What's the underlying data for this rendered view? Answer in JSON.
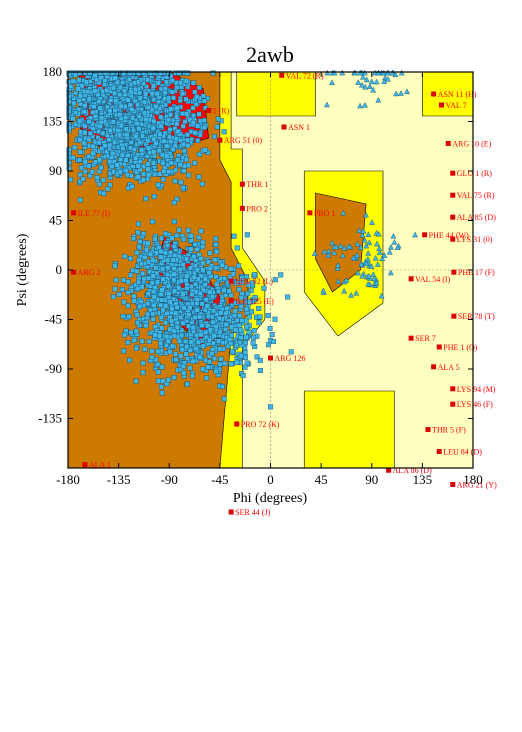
{
  "chart_data": {
    "type": "scatter",
    "title": "2awb",
    "xlabel": "Phi (degrees)",
    "ylabel": "Psi (degrees)",
    "xlim": [
      -180,
      180
    ],
    "ylim": [
      -180,
      180
    ],
    "x_ticks": [
      -180,
      -135,
      -90,
      -45,
      0,
      45,
      90,
      135,
      180
    ],
    "y_ticks": [
      180,
      135,
      90,
      45,
      0,
      -45,
      -90,
      -135
    ],
    "region_colors": {
      "core": "#ff0000",
      "allowed": "#cc7a00",
      "generous": "#ffff00",
      "outer": "#ffffc0"
    },
    "marker_colors": {
      "general": "#3fb6e8",
      "glycine": "#3fb6e8",
      "outlier": "#dd0000"
    },
    "series": [
      {
        "name": "",
        "marker": "square",
        "density_clusters": [
          {
            "phi": -120,
            "psi": 135,
            "count": 1400
          },
          {
            "phi": -65,
            "psi": -40,
            "count": 900
          },
          {
            "phi": -90,
            "psi": 0,
            "count": 350
          },
          {
            "phi": -150,
            "psi": 160,
            "count": 250
          }
        ]
      },
      {
        "name": "",
        "marker": "triangle",
        "density_clusters": [
          {
            "phi": 80,
            "psi": 10,
            "count": 80
          },
          {
            "phi": 90,
            "psi": 180,
            "count": 40
          }
        ]
      }
    ],
    "labeled_outliers": [
      {
        "label": "VAL 72 (R)",
        "phi": 10,
        "psi": 177
      },
      {
        "label": "ASN 11 (H)",
        "phi": 145,
        "psi": 160
      },
      {
        "label": "VAL 7",
        "phi": 152,
        "psi": 150
      },
      {
        "label": "5 (R)",
        "phi": -55,
        "psi": 145
      },
      {
        "label": "ARG 51 (0)",
        "phi": -45,
        "psi": 118
      },
      {
        "label": "ASN 1",
        "phi": 12,
        "psi": 130
      },
      {
        "label": "ARG 10 (E)",
        "phi": 158,
        "psi": 115
      },
      {
        "label": "GLU 1 (R)",
        "phi": 162,
        "psi": 88
      },
      {
        "label": "VAL 75 (R)",
        "phi": 162,
        "psi": 68
      },
      {
        "label": "ALA 85 (D)",
        "phi": 162,
        "psi": 48
      },
      {
        "label": "PHE 44 (W)",
        "phi": 137,
        "psi": 32
      },
      {
        "label": "LYS 31 (0)",
        "phi": 162,
        "psi": 28
      },
      {
        "label": "ILE 77 (I)",
        "phi": -175,
        "psi": 52
      },
      {
        "label": "THR 1",
        "phi": -25,
        "psi": 78
      },
      {
        "label": "PRO 2",
        "phi": -25,
        "psi": 56
      },
      {
        "label": "PRO 1",
        "phi": 35,
        "psi": 52
      },
      {
        "label": "ARG 2",
        "phi": -175,
        "psi": -2
      },
      {
        "label": "LEU 92 (L)",
        "phi": -35,
        "psi": -10
      },
      {
        "label": "ILE 125 (E)",
        "phi": -35,
        "psi": -28
      },
      {
        "label": "VAL 54 (I)",
        "phi": 125,
        "psi": -8
      },
      {
        "label": "PHE 17 (F)",
        "phi": 163,
        "psi": -2
      },
      {
        "label": "SER 78 (T)",
        "phi": 163,
        "psi": -42
      },
      {
        "label": "SER 7",
        "phi": 125,
        "psi": -62
      },
      {
        "label": "PHE 1 (Q)",
        "phi": 150,
        "psi": -70
      },
      {
        "label": "ALA 5",
        "phi": 145,
        "psi": -88
      },
      {
        "label": "ARG 126",
        "phi": 0,
        "psi": -80
      },
      {
        "label": "LYS 94 (M)",
        "phi": 162,
        "psi": -108
      },
      {
        "label": "LYS 46 (F)",
        "phi": 162,
        "psi": -122
      },
      {
        "label": "PRO 72 (K)",
        "phi": -30,
        "psi": -140
      },
      {
        "label": "THR 5 (F)",
        "phi": 140,
        "psi": -145
      },
      {
        "label": "LEU 84 (D)",
        "phi": 150,
        "psi": -165
      },
      {
        "label": "ALA 86 (D)",
        "phi": 105,
        "psi": -182
      },
      {
        "label": "ARG 21 (Y)",
        "phi": 162,
        "psi": -195
      },
      {
        "label": "SER 44 (J)",
        "phi": -35,
        "psi": -220
      },
      {
        "label": "ALA 1",
        "phi": -165,
        "psi": -177
      }
    ]
  }
}
